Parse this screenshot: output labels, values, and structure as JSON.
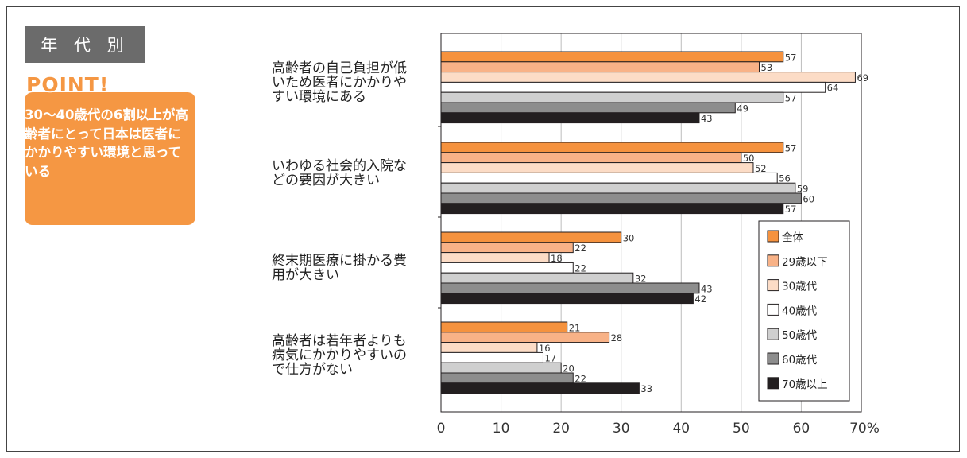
{
  "sidebar": {
    "badge": "年 代 別",
    "point_title": "POINT!",
    "point_text": "30～40歳代の6割以上が高齢者にとって日本は医者にかかりやすい環境と思っている"
  },
  "chart_data": {
    "type": "bar",
    "orientation": "horizontal",
    "categories": [
      "高齢者の自己負担が低\nいため医者にかかりや\nすい環境にある",
      "いわゆる社会的入院な\nどの要因が大きい",
      "終末期医療に掛かる費\n用が大きい",
      "高齢者は若年者よりも\n病気にかかりやすいの\nで仕方がない"
    ],
    "series": [
      {
        "name": "全体",
        "color": "#f5923e",
        "values": [
          57,
          57,
          30,
          21
        ]
      },
      {
        "name": "29歳以下",
        "color": "#f8b287",
        "values": [
          53,
          50,
          22,
          28
        ]
      },
      {
        "name": "30歳代",
        "color": "#fcdcc6",
        "values": [
          69,
          52,
          18,
          16
        ]
      },
      {
        "name": "40歳代",
        "color": "#ffffff",
        "values": [
          64,
          56,
          22,
          17
        ]
      },
      {
        "name": "50歳代",
        "color": "#cfcfcf",
        "values": [
          57,
          59,
          32,
          20
        ]
      },
      {
        "name": "60歳代",
        "color": "#8d8d8d",
        "values": [
          49,
          60,
          43,
          22
        ]
      },
      {
        "name": "70歳以上",
        "color": "#231f20",
        "values": [
          43,
          57,
          42,
          33
        ]
      }
    ],
    "xlim": [
      0,
      70
    ],
    "xticks": [
      "0",
      "10",
      "20",
      "30",
      "40",
      "50",
      "60",
      "70%"
    ],
    "grid": true,
    "legend_position": "lower-right"
  }
}
